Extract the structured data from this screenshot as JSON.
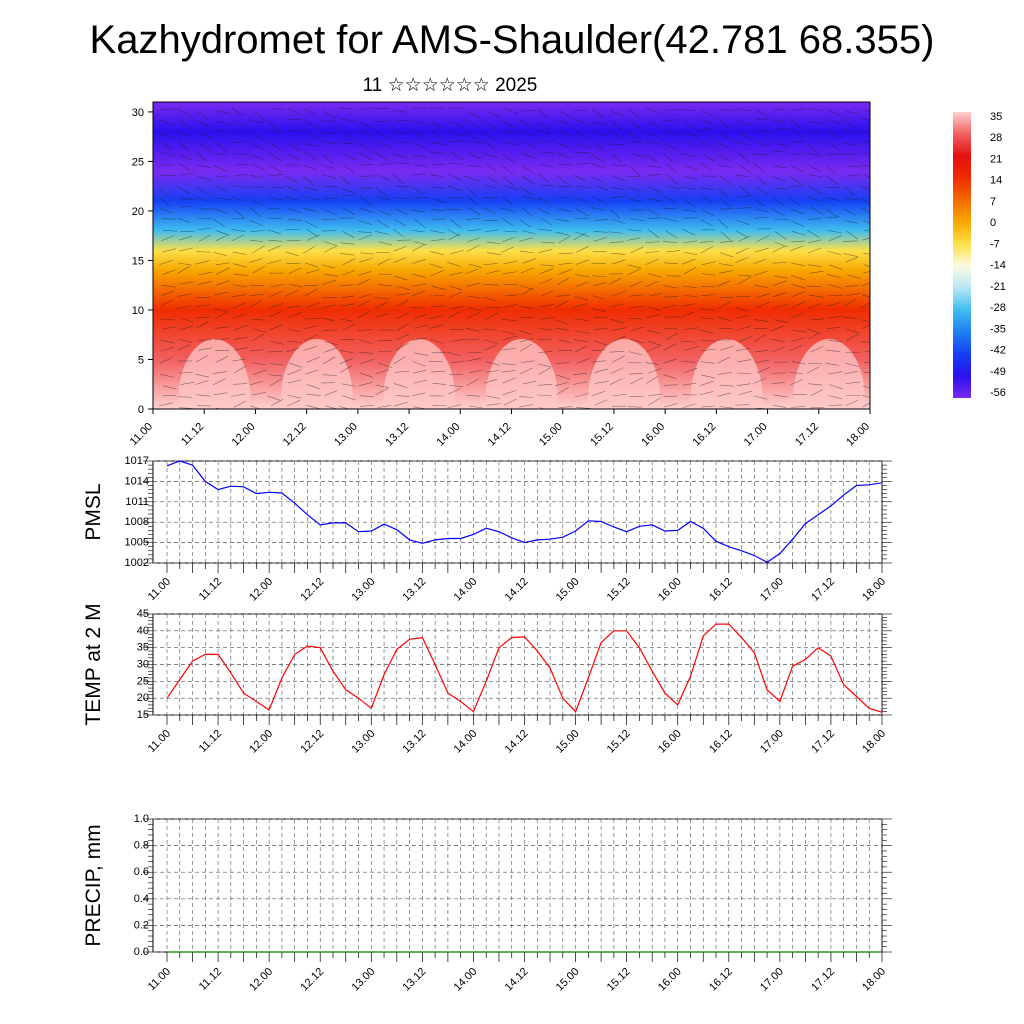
{
  "title": "Kazhydromet for AMS-Shaulder(42.781 68.355)",
  "subtitle": "11 ☆☆☆☆☆☆ 2025",
  "time_labels": [
    "11.00",
    "11.12",
    "12.00",
    "12.12",
    "13.00",
    "13.12",
    "14.00",
    "14.12",
    "15.00",
    "15.12",
    "16.00",
    "16.12",
    "17.00",
    "17.12",
    "18.00"
  ],
  "chart_data": [
    {
      "type": "heatmap",
      "x_ticks": [
        "11.00",
        "11.12",
        "12.00",
        "12.12",
        "13.00",
        "13.12",
        "14.00",
        "14.12",
        "15.00",
        "15.12",
        "16.00",
        "16.12",
        "17.00",
        "17.12",
        "18.00"
      ],
      "y_ticks": [
        "0",
        "5",
        "10",
        "15",
        "20",
        "25",
        "30"
      ],
      "ylim": [
        0,
        31
      ],
      "colorbar": {
        "labels": [
          "35",
          "28",
          "21",
          "14",
          "7",
          "0",
          "-7",
          "-14",
          "-21",
          "-28",
          "-35",
          "-42",
          "-49",
          "-56"
        ],
        "colors": [
          "#ffd0d0",
          "#f26060",
          "#e51010",
          "#f02c00",
          "#f46a00",
          "#f8a800",
          "#fde04a",
          "#fbfbe0",
          "#b7e6f6",
          "#3fbdf0",
          "#1f7ff2",
          "#1540f5",
          "#2a10ee",
          "#7a2af0"
        ]
      },
      "profile": [
        {
          "z": 0,
          "value": 32
        },
        {
          "z": 5,
          "value": 25
        },
        {
          "z": 10,
          "value": 15
        },
        {
          "z": 14,
          "value": 0
        },
        {
          "z": 16,
          "value": -10
        },
        {
          "z": 18,
          "value": -30
        },
        {
          "z": 21,
          "value": -45
        },
        {
          "z": 24,
          "value": -58
        },
        {
          "z": 28,
          "value": -50
        },
        {
          "z": 31,
          "value": -55
        }
      ],
      "grid": false
    },
    {
      "type": "line",
      "ylabel": "PMSL",
      "ylim": [
        1002,
        1017
      ],
      "y_ticks": [
        "1002",
        "1005",
        "1008",
        "1011",
        "1014",
        "1017"
      ],
      "x_ticks": [
        "11.00",
        "11.12",
        "12.00",
        "12.12",
        "13.00",
        "13.12",
        "14.00",
        "14.12",
        "15.00",
        "15.12",
        "16.00",
        "16.12",
        "17.00",
        "17.12",
        "18.00"
      ],
      "series": [
        {
          "color": "#0000ff",
          "values": [
            1016.3,
            1017.0,
            1016.4,
            1014.0,
            1012.8,
            1013.3,
            1013.2,
            1012.2,
            1012.4,
            1012.3,
            1010.8,
            1009.1,
            1007.6,
            1007.9,
            1007.9,
            1006.6,
            1006.7,
            1007.7,
            1006.9,
            1005.4,
            1004.9,
            1005.4,
            1005.6,
            1005.6,
            1006.2,
            1007.1,
            1006.6,
            1005.7,
            1005.0,
            1005.4,
            1005.5,
            1005.8,
            1006.7,
            1008.2,
            1008.1,
            1007.3,
            1006.6,
            1007.4,
            1007.6,
            1006.7,
            1006.8,
            1008.1,
            1007.1,
            1005.2,
            1004.4,
            1003.8,
            1003.1,
            1002.1,
            1003.4,
            1005.5,
            1007.8,
            1009.1,
            1010.4,
            1012.0,
            1013.4,
            1013.5,
            1013.8
          ]
        }
      ],
      "grid": true
    },
    {
      "type": "line",
      "ylabel": "TEMP at 2 M",
      "ylim": [
        15,
        45
      ],
      "y_ticks": [
        "15",
        "20",
        "25",
        "30",
        "35",
        "40",
        "45"
      ],
      "x_ticks": [
        "11.00",
        "11.12",
        "12.00",
        "12.12",
        "13.00",
        "13.12",
        "14.00",
        "14.12",
        "15.00",
        "15.12",
        "16.00",
        "16.12",
        "17.00",
        "17.12",
        "18.00"
      ],
      "series": [
        {
          "color": "#ff0000",
          "values": [
            20.0,
            25.5,
            31.0,
            33.0,
            33.0,
            27.5,
            21.5,
            19.0,
            16.5,
            26.0,
            33.0,
            35.5,
            35.0,
            28.0,
            22.5,
            20.0,
            17.0,
            27.0,
            34.5,
            37.5,
            38.0,
            30.0,
            21.5,
            19.0,
            16.0,
            25.0,
            35.0,
            38.0,
            38.2,
            34.0,
            29.0,
            20.0,
            16.0,
            26.0,
            36.5,
            40.0,
            40.0,
            35.0,
            28.0,
            21.5,
            18.0,
            26.5,
            38.5,
            42.0,
            42.0,
            38.0,
            33.5,
            22.5,
            19.0,
            29.5,
            31.5,
            35.0,
            32.5,
            24.0,
            20.5,
            17.0,
            15.8
          ]
        }
      ],
      "grid": true
    },
    {
      "type": "line",
      "ylabel": "PRECIP, mm",
      "ylim": [
        0,
        1
      ],
      "y_ticks": [
        "0.0",
        "0.2",
        "0.4",
        "0.6",
        "0.8",
        "1.0"
      ],
      "x_ticks": [
        "11.00",
        "11.12",
        "12.00",
        "12.12",
        "13.00",
        "13.12",
        "14.00",
        "14.12",
        "15.00",
        "15.12",
        "16.00",
        "16.12",
        "17.00",
        "17.12",
        "18.00"
      ],
      "series": [
        {
          "color": "#008000",
          "values": [
            0,
            0,
            0,
            0,
            0,
            0,
            0,
            0,
            0,
            0,
            0,
            0,
            0,
            0,
            0,
            0,
            0,
            0,
            0,
            0,
            0,
            0,
            0,
            0,
            0,
            0,
            0,
            0,
            0,
            0,
            0,
            0,
            0,
            0,
            0,
            0,
            0,
            0,
            0,
            0,
            0,
            0,
            0,
            0,
            0,
            0,
            0,
            0,
            0,
            0,
            0,
            0,
            0,
            0,
            0,
            0,
            0
          ]
        }
      ],
      "grid": true
    }
  ]
}
